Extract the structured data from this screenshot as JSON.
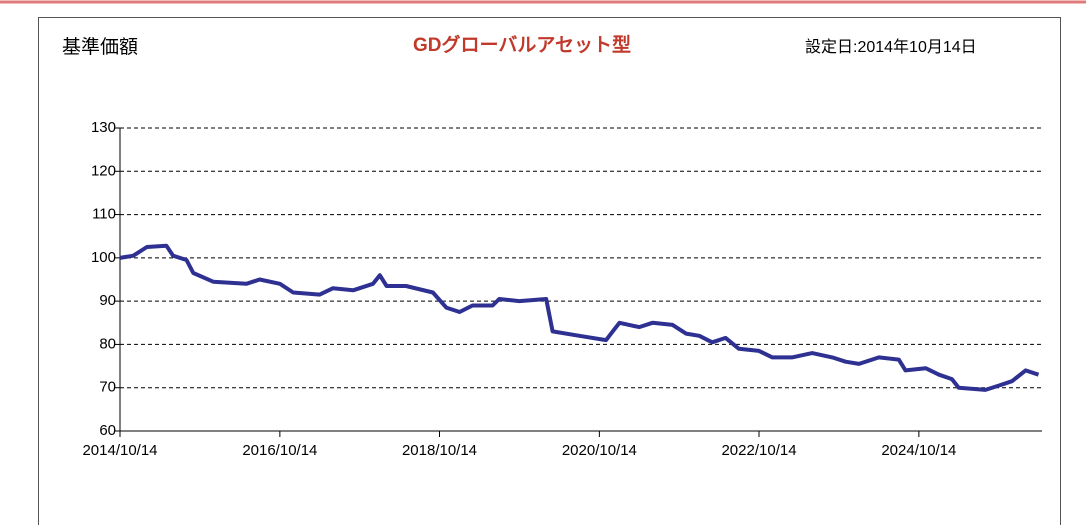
{
  "chart_data": {
    "type": "line",
    "heading": "基準価額",
    "title": "GDグローバルアセット型",
    "inception": "設定日:2014年10月14日",
    "x": [
      "2014/10/14",
      "2014/12/14",
      "2015/02/14",
      "2015/05/14",
      "2015/06/14",
      "2015/08/14",
      "2015/09/14",
      "2015/12/14",
      "2016/05/14",
      "2016/07/14",
      "2016/10/14",
      "2016/12/14",
      "2017/04/14",
      "2017/06/14",
      "2017/09/14",
      "2017/12/14",
      "2018/01/14",
      "2018/02/14",
      "2018/05/14",
      "2018/09/14",
      "2018/11/14",
      "2019/01/14",
      "2019/03/14",
      "2019/06/14",
      "2019/07/14",
      "2019/10/14",
      "2020/02/14",
      "2020/03/14",
      "2020/07/14",
      "2020/11/14",
      "2020/12/14",
      "2021/01/14",
      "2021/04/14",
      "2021/06/14",
      "2021/09/14",
      "2021/11/14",
      "2022/01/14",
      "2022/03/14",
      "2022/05/14",
      "2022/07/14",
      "2022/10/14",
      "2022/12/14",
      "2023/03/14",
      "2023/06/14",
      "2023/09/14",
      "2023/11/14",
      "2024/01/14",
      "2024/04/14",
      "2024/07/14",
      "2024/08/14",
      "2024/11/14",
      "2025/01/14",
      "2025/03/14",
      "2025/04/14",
      "2025/08/14",
      "2025/10/14",
      "2025/12/14",
      "2026/02/14",
      "2026/04/14"
    ],
    "series": [
      {
        "name": "基準価額",
        "color": "#2e3192",
        "values": [
          100,
          100.5,
          102.5,
          102.8,
          100.5,
          99.5,
          96.5,
          94.5,
          94,
          95,
          94,
          92,
          91.5,
          93,
          92.5,
          94,
          96,
          93.5,
          93.5,
          92,
          88.5,
          87.5,
          89,
          89,
          90.5,
          90,
          90.5,
          83,
          82,
          81,
          83,
          85,
          84,
          85,
          84.5,
          82.5,
          82,
          80.5,
          81.5,
          79,
          78.5,
          77,
          77,
          78,
          77,
          76,
          75.5,
          77,
          76.5,
          74,
          74.5,
          73,
          72,
          70,
          69.5,
          70.5,
          71.5,
          74,
          73
        ]
      }
    ],
    "xlim": [
      "2014/10/14",
      "2026/04/30"
    ],
    "xticks": [
      "2014/10/14",
      "2016/10/14",
      "2018/10/14",
      "2020/10/14",
      "2022/10/14",
      "2024/10/14"
    ],
    "ylim": [
      60,
      130
    ],
    "yticks": [
      60,
      70,
      80,
      90,
      100,
      110,
      120,
      130
    ],
    "grid": true
  }
}
